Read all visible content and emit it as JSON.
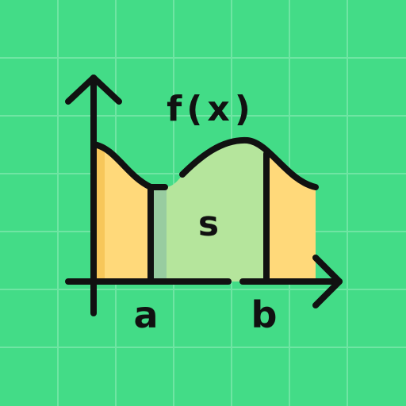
{
  "graph": {
    "function_label": "f(x)",
    "area_label": "s",
    "lower_bound_label": "a",
    "upper_bound_label": "b"
  },
  "colors": {
    "background": "#43DC87",
    "grid": "#6FE5A3",
    "outline": "#111111",
    "outer_area": "#FFD97A",
    "outer_area_shade": "#F7C75A",
    "inner_area": "#B5E59C",
    "inner_area_shade": "#98CCA0"
  }
}
